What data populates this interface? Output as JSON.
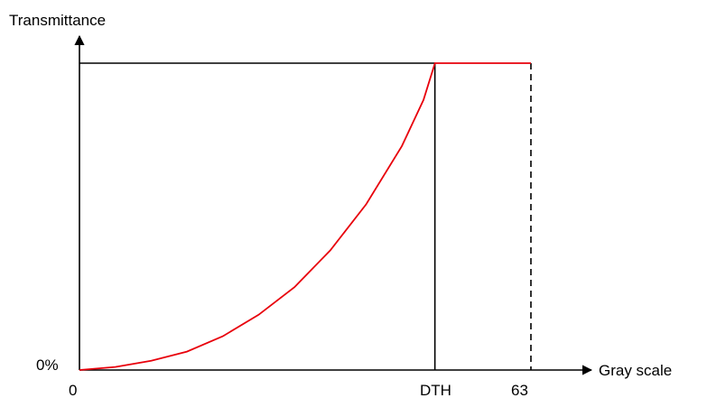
{
  "chart_data": {
    "type": "line",
    "title": "",
    "ylabel": "Transmittance",
    "xlabel": "Gray scale",
    "x_ticks": [
      "0",
      "DTH",
      "63"
    ],
    "y_ticks": [
      "0%"
    ],
    "xlim": [
      0,
      63
    ],
    "ylim": [
      0,
      1
    ],
    "grid": false,
    "legend": "none",
    "x_dth": 49.6,
    "series": [
      {
        "color": "#e8000b",
        "points": [
          [
            0,
            0
          ],
          [
            5,
            0.01
          ],
          [
            10,
            0.03
          ],
          [
            15,
            0.06
          ],
          [
            20,
            0.11
          ],
          [
            25,
            0.18
          ],
          [
            30,
            0.27
          ],
          [
            35,
            0.39
          ],
          [
            40,
            0.54
          ],
          [
            45,
            0.73
          ],
          [
            48,
            0.88
          ],
          [
            49.6,
            1.0
          ],
          [
            63,
            1.0
          ]
        ]
      }
    ],
    "reference_lines": {
      "solid_color": "#000000",
      "dashed_color": "#000000"
    }
  }
}
